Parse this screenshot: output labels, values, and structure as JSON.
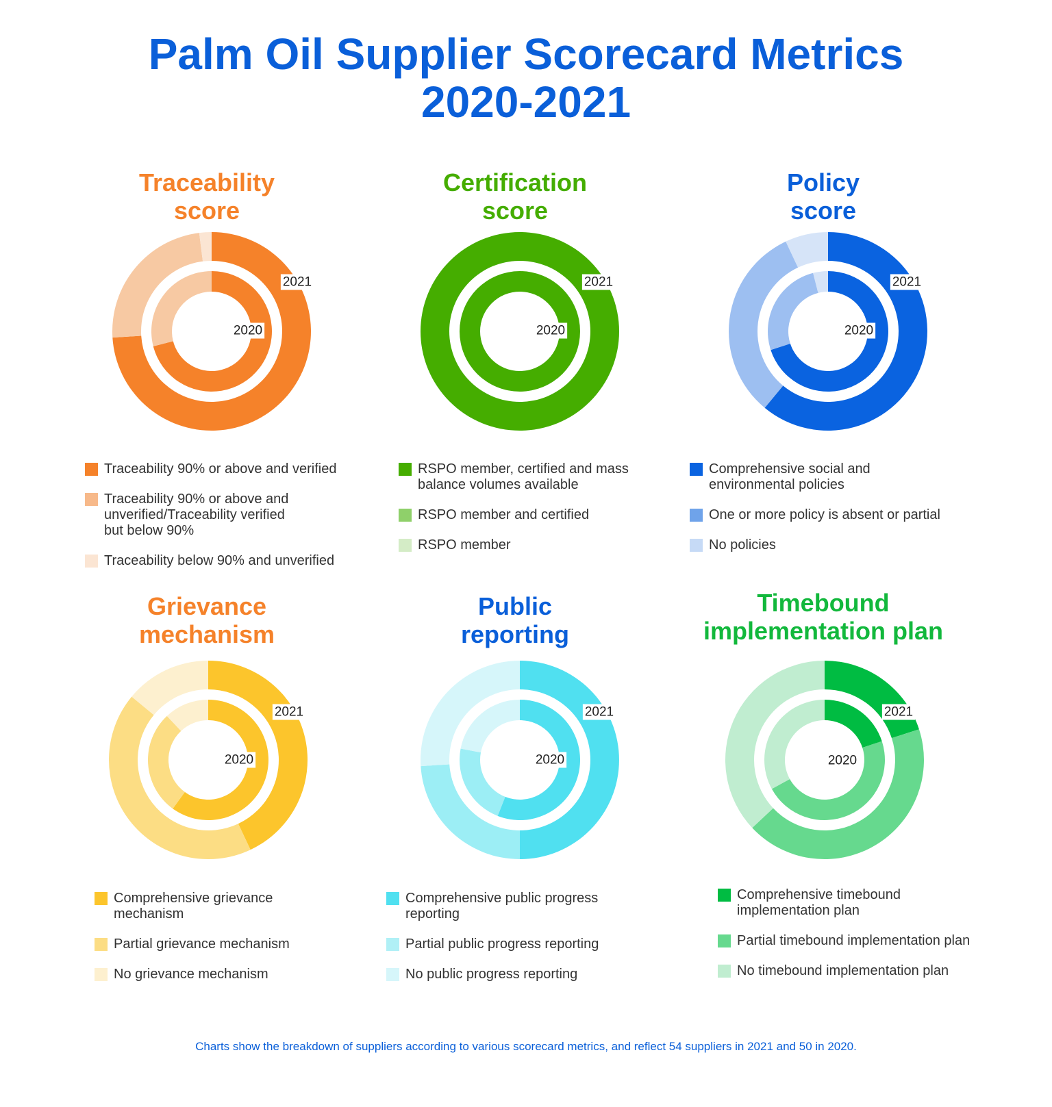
{
  "title_line1": "Palm Oil Supplier Scorecard Metrics",
  "title_line2": "2020-2021",
  "footnote": "Charts show the breakdown of suppliers according to various scorecard metrics, and reflect 54 suppliers in 2021 and 50 in 2020.",
  "chart_data": [
    {
      "type": "pie",
      "title_line1": "Traceability",
      "title_line2": "score",
      "title_color": "#f5822a",
      "outer_label": "2021",
      "inner_label": "2020",
      "series": [
        {
          "name": "Traceability 90% or above and verified",
          "color": "#f5822a",
          "values": {
            "2021": 74,
            "2020": 71
          }
        },
        {
          "name": "Traceability 90% or above and unverified/Traceability verified but below 90%",
          "color": "#f7c9a3",
          "values": {
            "2021": 24,
            "2020": 29
          }
        },
        {
          "name": "Traceability below 90% and unverified",
          "color": "#fbe5d3",
          "values": {
            "2021": 2,
            "2020": 0
          }
        }
      ],
      "legend": [
        {
          "lines": [
            "Traceability 90% or above and verified"
          ],
          "color": "#f5822a"
        },
        {
          "lines": [
            "Traceability 90% or above and",
            "unverified/Traceability verified",
            "but below 90%"
          ],
          "color": "#f7b98a"
        },
        {
          "lines": [
            "Traceability below 90% and unverified"
          ],
          "color": "#fbe5d3"
        }
      ]
    },
    {
      "type": "pie",
      "title_line1": "Certification",
      "title_line2": "score",
      "title_color": "#45ad00",
      "outer_label": "2021",
      "inner_label": "2020",
      "series": [
        {
          "name": "RSPO member, certified and mass balance volumes available",
          "color": "#45ad00",
          "values": {
            "2021": 100,
            "2020": 100
          }
        },
        {
          "name": "RSPO member and certified",
          "color": "#8fd06a",
          "values": {
            "2021": 0,
            "2020": 0
          }
        },
        {
          "name": "RSPO member",
          "color": "#d4ecc6",
          "values": {
            "2021": 0,
            "2020": 0
          }
        }
      ],
      "legend": [
        {
          "lines": [
            "RSPO member, certified and mass",
            "balance volumes available"
          ],
          "color": "#45ad00"
        },
        {
          "lines": [
            "RSPO member and certified"
          ],
          "color": "#8fd06a"
        },
        {
          "lines": [
            "RSPO member"
          ],
          "color": "#d4ecc6"
        }
      ]
    },
    {
      "type": "pie",
      "title_line1": "Policy",
      "title_line2": "score",
      "title_color": "#0a5fd9",
      "outer_label": "2021",
      "inner_label": "2020",
      "series": [
        {
          "name": "Comprehensive social and environmental policies",
          "color": "#0a63e0",
          "values": {
            "2021": 61,
            "2020": 70
          }
        },
        {
          "name": "One or more policy is absent or partial",
          "color": "#9dbff1",
          "values": {
            "2021": 32,
            "2020": 26
          }
        },
        {
          "name": "No policies",
          "color": "#d6e4f8",
          "values": {
            "2021": 7,
            "2020": 4
          }
        }
      ],
      "legend": [
        {
          "lines": [
            "Comprehensive social and",
            "environmental policies"
          ],
          "color": "#0a63e0"
        },
        {
          "lines": [
            "One or more policy is absent or partial"
          ],
          "color": "#6fa3ea"
        },
        {
          "lines": [
            "No policies"
          ],
          "color": "#c6daf6"
        }
      ]
    },
    {
      "type": "pie",
      "title_line1": "Grievance",
      "title_line2": "mechanism",
      "title_color": "#f5822a",
      "outer_label": "2021",
      "inner_label": "2020",
      "series": [
        {
          "name": "Comprehensive grievance mechanism",
          "color": "#fcc52c",
          "values": {
            "2021": 43,
            "2020": 60
          }
        },
        {
          "name": "Partial grievance mechanism",
          "color": "#fcdd84",
          "values": {
            "2021": 43,
            "2020": 28
          }
        },
        {
          "name": "No grievance mechanism",
          "color": "#fdf0cf",
          "values": {
            "2021": 14,
            "2020": 12
          }
        }
      ],
      "legend": [
        {
          "lines": [
            "Comprehensive grievance",
            "mechanism"
          ],
          "color": "#fcc52c"
        },
        {
          "lines": [
            "Partial grievance mechanism"
          ],
          "color": "#fcdd84"
        },
        {
          "lines": [
            "No grievance mechanism"
          ],
          "color": "#fdf0cf"
        }
      ]
    },
    {
      "type": "pie",
      "title_line1": "Public",
      "title_line2": "reporting",
      "title_color": "#0a5fd9",
      "outer_label": "2021",
      "inner_label": "2020",
      "series": [
        {
          "name": "Comprehensive public progress reporting",
          "color": "#50e0f0",
          "values": {
            "2021": 50,
            "2020": 56
          }
        },
        {
          "name": "Partial public progress reporting",
          "color": "#9ceef5",
          "values": {
            "2021": 24,
            "2020": 22
          }
        },
        {
          "name": "No public progress reporting",
          "color": "#d6f6fa",
          "values": {
            "2021": 26,
            "2020": 22
          }
        }
      ],
      "legend": [
        {
          "lines": [
            "Comprehensive public progress",
            "reporting"
          ],
          "color": "#50e0f0"
        },
        {
          "lines": [
            "Partial public progress reporting"
          ],
          "color": "#b0f0f6"
        },
        {
          "lines": [
            "No public progress reporting"
          ],
          "color": "#d6f6fa"
        }
      ]
    },
    {
      "type": "pie",
      "title_line1": "Timebound",
      "title_line2": "implementation plan",
      "title_color": "#12b83c",
      "outer_label": "2021",
      "inner_label": "2020",
      "series": [
        {
          "name": "Comprehensive timebound implementation plan",
          "color": "#00bc42",
          "values": {
            "2021": 20,
            "2020": 20
          }
        },
        {
          "name": "Partial timebound implementation plan",
          "color": "#66d98e",
          "values": {
            "2021": 43,
            "2020": 47
          }
        },
        {
          "name": "No timebound implementation plan",
          "color": "#c0edd0",
          "values": {
            "2021": 37,
            "2020": 33
          }
        }
      ],
      "legend": [
        {
          "lines": [
            "Comprehensive timebound",
            "implementation plan"
          ],
          "color": "#00bc42"
        },
        {
          "lines": [
            "Partial timebound implementation plan"
          ],
          "color": "#66d98e"
        },
        {
          "lines": [
            "No timebound implementation plan"
          ],
          "color": "#c0edd0"
        }
      ]
    }
  ]
}
